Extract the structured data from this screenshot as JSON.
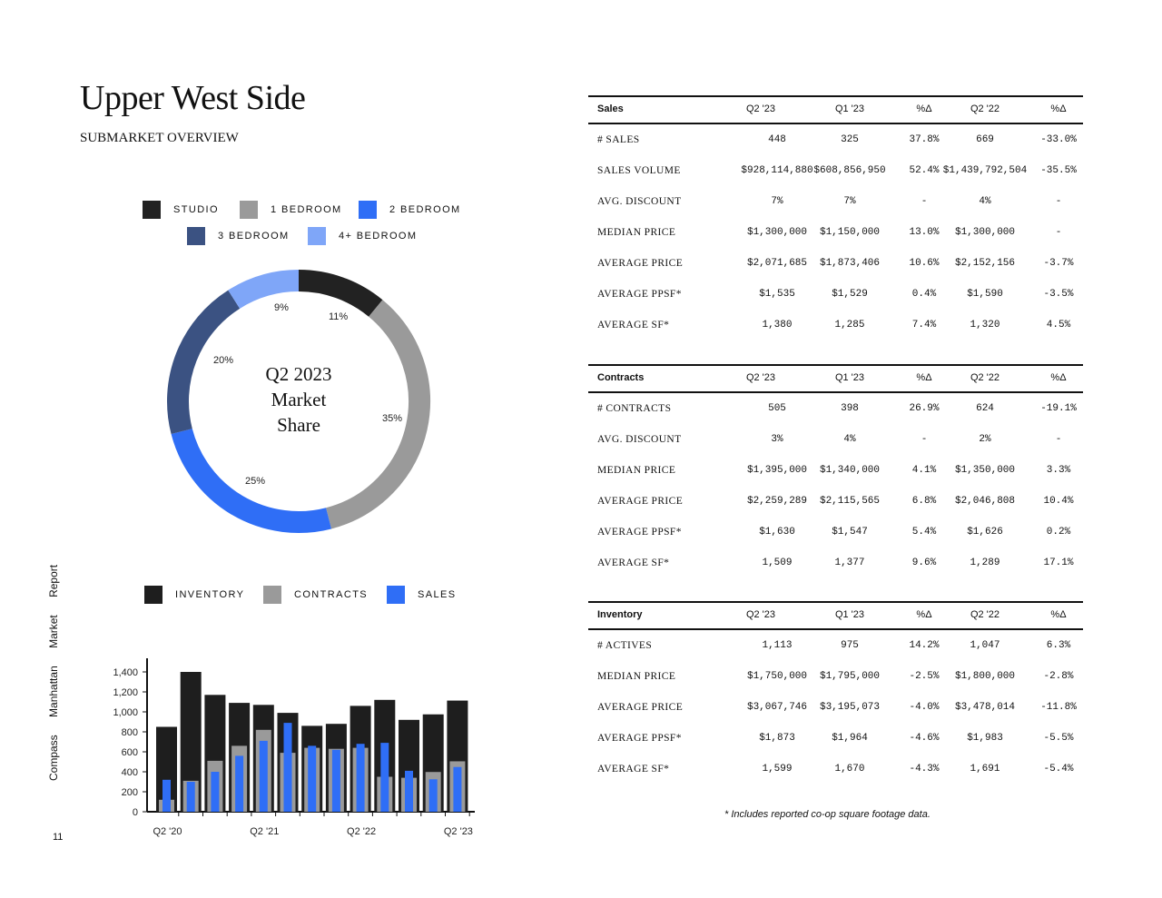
{
  "page": {
    "title": "Upper West Side",
    "subtitle": "SUBMARKET OVERVIEW",
    "side_brand": "Compass",
    "side_report": "Manhattan Market Report",
    "page_number": "11",
    "footnote": "* Includes reported co-op square footage data."
  },
  "colors": {
    "studio": "#222222",
    "one_bed": "#9a9a9a",
    "two_bed": "#2f6ef6",
    "three_bed": "#3b5282",
    "four_bed": "#7fa6f8",
    "inventory": "#1e1e1e",
    "contracts": "#9a9a9a",
    "sales": "#2f6ef6"
  },
  "donut": {
    "center_line1": "Q2 2023",
    "center_line2": "Market",
    "center_line3": "Share",
    "legend": [
      "STUDIO",
      "1 BEDROOM",
      "2 BEDROOM",
      "3 BEDROOM",
      "4+ BEDROOM"
    ],
    "labels": [
      "11%",
      "35%",
      "25%",
      "20%",
      "9%"
    ]
  },
  "bar_legend": [
    "INVENTORY",
    "CONTRACTS",
    "SALES"
  ],
  "chart_data": [
    {
      "type": "pie",
      "title": "Q2 2023 Market Share",
      "categories": [
        "STUDIO",
        "1 BEDROOM",
        "2 BEDROOM",
        "3 BEDROOM",
        "4+ BEDROOM"
      ],
      "values": [
        11,
        35,
        25,
        20,
        9
      ],
      "donut": true
    },
    {
      "type": "bar",
      "categories": [
        "Q2 '20",
        "Q3 '20",
        "Q4 '20",
        "Q1 '21",
        "Q2 '21",
        "Q3 '21",
        "Q4 '21",
        "Q1 '22",
        "Q2 '22",
        "Q3 '22",
        "Q4 '22",
        "Q1 '23",
        "Q2 '23"
      ],
      "tick_labels": [
        "Q2 '20",
        "Q2 '21",
        "Q2 '22",
        "Q2 '23"
      ],
      "series": [
        {
          "name": "INVENTORY",
          "values": [
            850,
            1400,
            1170,
            1090,
            1070,
            990,
            860,
            880,
            1060,
            1120,
            920,
            975,
            1113
          ]
        },
        {
          "name": "CONTRACTS",
          "values": [
            120,
            310,
            510,
            660,
            820,
            590,
            640,
            630,
            640,
            350,
            340,
            398,
            505
          ]
        },
        {
          "name": "SALES",
          "values": [
            320,
            300,
            400,
            560,
            710,
            890,
            660,
            620,
            680,
            690,
            410,
            325,
            448
          ]
        }
      ],
      "yticks": [
        "0",
        "200",
        "400",
        "600",
        "800",
        "1,000",
        "1,200",
        "1,400"
      ],
      "ylim": [
        0,
        1500
      ],
      "grid": false
    }
  ],
  "tables": [
    {
      "header": [
        "Sales",
        "Q2 '23",
        "Q1 '23",
        "%Δ",
        "Q2 '22",
        "%Δ"
      ],
      "rows": [
        [
          "# SALES",
          "448",
          "325",
          "37.8%",
          "669",
          "-33.0%"
        ],
        [
          "SALES VOLUME",
          "$928,114,880",
          "$608,856,950",
          "52.4%",
          "$1,439,792,504",
          "-35.5%"
        ],
        [
          "AVG. DISCOUNT",
          "7%",
          "7%",
          "-",
          "4%",
          "-"
        ],
        [
          "MEDIAN PRICE",
          "$1,300,000",
          "$1,150,000",
          "13.0%",
          "$1,300,000",
          "-"
        ],
        [
          "AVERAGE PRICE",
          "$2,071,685",
          "$1,873,406",
          "10.6%",
          "$2,152,156",
          "-3.7%"
        ],
        [
          "AVERAGE PPSF*",
          "$1,535",
          "$1,529",
          "0.4%",
          "$1,590",
          "-3.5%"
        ],
        [
          "AVERAGE SF*",
          "1,380",
          "1,285",
          "7.4%",
          "1,320",
          "4.5%"
        ]
      ]
    },
    {
      "header": [
        "Contracts",
        "Q2 '23",
        "Q1 '23",
        "%Δ",
        "Q2 '22",
        "%Δ"
      ],
      "rows": [
        [
          "# CONTRACTS",
          "505",
          "398",
          "26.9%",
          "624",
          "-19.1%"
        ],
        [
          "AVG. DISCOUNT",
          "3%",
          "4%",
          "-",
          "2%",
          "-"
        ],
        [
          "MEDIAN PRICE",
          "$1,395,000",
          "$1,340,000",
          "4.1%",
          "$1,350,000",
          "3.3%"
        ],
        [
          "AVERAGE PRICE",
          "$2,259,289",
          "$2,115,565",
          "6.8%",
          "$2,046,808",
          "10.4%"
        ],
        [
          "AVERAGE PPSF*",
          "$1,630",
          "$1,547",
          "5.4%",
          "$1,626",
          "0.2%"
        ],
        [
          "AVERAGE SF*",
          "1,509",
          "1,377",
          "9.6%",
          "1,289",
          "17.1%"
        ]
      ]
    },
    {
      "header": [
        "Inventory",
        "Q2 '23",
        "Q1 '23",
        "%Δ",
        "Q2 '22",
        "%Δ"
      ],
      "rows": [
        [
          "# ACTIVES",
          "1,113",
          "975",
          "14.2%",
          "1,047",
          "6.3%"
        ],
        [
          "MEDIAN PRICE",
          "$1,750,000",
          "$1,795,000",
          "-2.5%",
          "$1,800,000",
          "-2.8%"
        ],
        [
          "AVERAGE PRICE",
          "$3,067,746",
          "$3,195,073",
          "-4.0%",
          "$3,478,014",
          "-11.8%"
        ],
        [
          "AVERAGE PPSF*",
          "$1,873",
          "$1,964",
          "-4.6%",
          "$1,983",
          "-5.5%"
        ],
        [
          "AVERAGE SF*",
          "1,599",
          "1,670",
          "-4.3%",
          "1,691",
          "-5.4%"
        ]
      ]
    }
  ]
}
